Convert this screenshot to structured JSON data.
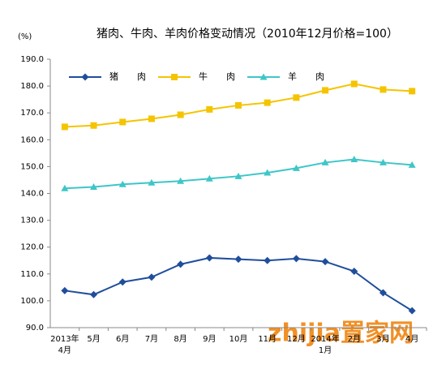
{
  "chart_data": {
    "type": "line",
    "title": "猪肉、牛肉、羊肉价格变动情况（2010年12月价格=100）",
    "y_unit": "(%)",
    "categories": [
      "2013年\n4月",
      "5月",
      "6月",
      "7月",
      "8月",
      "9月",
      "10月",
      "11月",
      "12月",
      "2014年\n1月",
      "2月",
      "3月",
      "4月"
    ],
    "series": [
      {
        "name": "猪　肉",
        "color": "#1f4e9c",
        "marker": "diamond",
        "values": [
          103.8,
          102.3,
          107.0,
          108.8,
          113.6,
          116.0,
          115.5,
          115.0,
          115.7,
          114.6,
          111.0,
          103.0,
          96.3
        ]
      },
      {
        "name": "牛　肉",
        "color": "#f5c400",
        "marker": "square",
        "values": [
          164.8,
          165.3,
          166.6,
          167.8,
          169.3,
          171.3,
          172.8,
          173.8,
          175.7,
          178.4,
          180.8,
          178.7,
          178.1
        ]
      },
      {
        "name": "羊　肉",
        "color": "#3ec6c8",
        "marker": "triangle",
        "values": [
          141.9,
          142.4,
          143.4,
          144.0,
          144.6,
          145.5,
          146.4,
          147.7,
          149.4,
          151.5,
          152.7,
          151.5,
          150.6
        ]
      }
    ],
    "ylim": [
      90,
      190
    ],
    "yticks": [
      {
        "value": 90,
        "label": "90.0"
      },
      {
        "value": 100,
        "label": "100.0"
      },
      {
        "value": 110,
        "label": "110.0"
      },
      {
        "value": 120,
        "label": "120.0"
      },
      {
        "value": 130,
        "label": "130.0"
      },
      {
        "value": 140,
        "label": "140.0"
      },
      {
        "value": 150,
        "label": "150.0"
      },
      {
        "value": 160,
        "label": "160.0"
      },
      {
        "value": 170,
        "label": "170.0"
      },
      {
        "value": 180,
        "label": "180.0"
      },
      {
        "value": 190,
        "label": "190.0"
      }
    ],
    "legend": "top-left",
    "watermark": "zhijia置家网"
  }
}
